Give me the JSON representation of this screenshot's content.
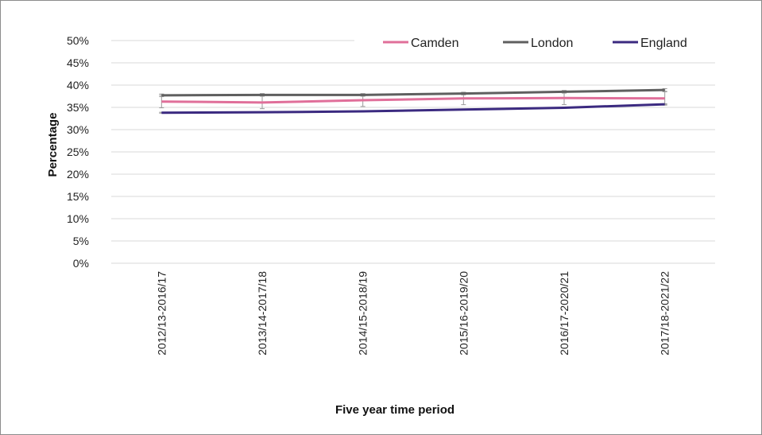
{
  "chart_data": {
    "type": "line",
    "title": "",
    "xlabel": "Five year time period",
    "ylabel": "Percentage",
    "categories": [
      "2012/13-2016/17",
      "2013/14-2017/18",
      "2014/15-2018/19",
      "2015/16-2019/20",
      "2016/17-2020/21",
      "2017/18-2021/22"
    ],
    "ylim": [
      0,
      50
    ],
    "yticks": [
      0,
      5,
      10,
      15,
      20,
      25,
      30,
      35,
      40,
      45,
      50
    ],
    "ytick_labels": [
      "0%",
      "5%",
      "10%",
      "15%",
      "20%",
      "25%",
      "30%",
      "35%",
      "40%",
      "45%",
      "50%"
    ],
    "grid": true,
    "legend_position": "top-right",
    "series": [
      {
        "name": "Camden",
        "color": "#e06f9a",
        "values": [
          36.3,
          36.1,
          36.6,
          37.0,
          37.1,
          37.0
        ],
        "error": [
          1.4,
          1.4,
          1.4,
          1.4,
          1.5,
          1.5
        ]
      },
      {
        "name": "London",
        "color": "#5f5f5f",
        "values": [
          37.7,
          37.8,
          37.8,
          38.1,
          38.5,
          38.9
        ],
        "error": [
          0.3,
          0.3,
          0.3,
          0.3,
          0.3,
          0.3
        ]
      },
      {
        "name": "England",
        "color": "#3b2a80",
        "values": [
          33.8,
          33.9,
          34.1,
          34.5,
          34.9,
          35.7
        ],
        "error": [
          0.1,
          0.1,
          0.1,
          0.1,
          0.1,
          0.1
        ]
      }
    ]
  }
}
